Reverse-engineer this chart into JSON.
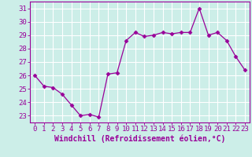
{
  "x": [
    0,
    1,
    2,
    3,
    4,
    5,
    6,
    7,
    8,
    9,
    10,
    11,
    12,
    13,
    14,
    15,
    16,
    17,
    18,
    19,
    20,
    21,
    22,
    23
  ],
  "y": [
    26.0,
    25.2,
    25.1,
    24.6,
    23.8,
    23.0,
    23.1,
    22.9,
    26.1,
    26.2,
    28.6,
    29.2,
    28.9,
    29.0,
    29.2,
    29.1,
    29.2,
    29.2,
    31.0,
    29.0,
    29.2,
    28.6,
    27.4,
    26.4
  ],
  "line_color": "#990099",
  "marker": "D",
  "marker_size": 2.5,
  "background_color": "#cceee8",
  "grid_color": "#ffffff",
  "xlabel": "Windchill (Refroidissement éolien,°C)",
  "xlabel_fontsize": 7,
  "tick_fontsize": 6.5,
  "ylim": [
    22.5,
    31.5
  ],
  "xlim": [
    -0.5,
    23.5
  ],
  "yticks": [
    23,
    24,
    25,
    26,
    27,
    28,
    29,
    30,
    31
  ]
}
